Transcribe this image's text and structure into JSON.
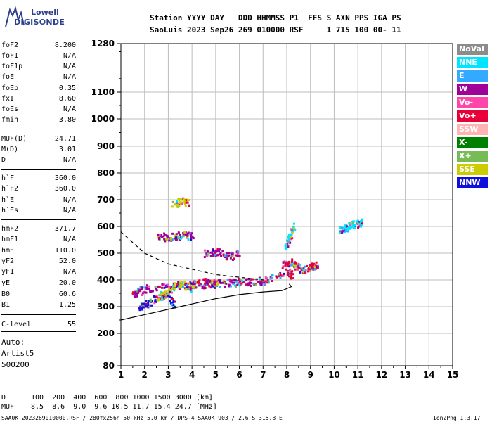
{
  "logo": {
    "line1": "Lowell",
    "line2": "DIGISONDE"
  },
  "header": {
    "line1": "Station YYYY DAY   DDD HHMMSS P1  FFS S AXN PPS IGA PS",
    "line2": "SaoLuis 2023 Sep26 269 010000 RSF     1 715 100 00- 11"
  },
  "params": [
    {
      "name": "foF2",
      "value": "8.200"
    },
    {
      "name": "foF1",
      "value": "N/A"
    },
    {
      "name": "foF1p",
      "value": "N/A"
    },
    {
      "name": "foE",
      "value": "N/A"
    },
    {
      "name": "foEp",
      "value": "0.35"
    },
    {
      "name": "fxI",
      "value": "8.60"
    },
    {
      "name": "foEs",
      "value": "N/A"
    },
    {
      "name": "fmin",
      "value": "3.80"
    },
    {
      "name": "MUF(D)",
      "value": "24.71"
    },
    {
      "name": "M(D)",
      "value": "3.01"
    },
    {
      "name": "D",
      "value": "N/A"
    },
    {
      "name": "h`F",
      "value": "360.0"
    },
    {
      "name": "h`F2",
      "value": "360.0"
    },
    {
      "name": "h`E",
      "value": "N/A"
    },
    {
      "name": "h`Es",
      "value": "N/A"
    },
    {
      "name": "hmF2",
      "value": "371.7"
    },
    {
      "name": "hmF1",
      "value": "N/A"
    },
    {
      "name": "hmE",
      "value": "110.0"
    },
    {
      "name": "yF2",
      "value": "52.0"
    },
    {
      "name": "yF1",
      "value": "N/A"
    },
    {
      "name": "yE",
      "value": "20.0"
    },
    {
      "name": "B0",
      "value": "60.6"
    },
    {
      "name": "B1",
      "value": "1.25"
    },
    {
      "name": "C-level",
      "value": "55"
    }
  ],
  "auto": {
    "line1": "Auto:",
    "line2": "Artist5",
    "line3": "500200"
  },
  "legend": [
    {
      "label": "NoVal",
      "color": "#8c8c8c"
    },
    {
      "label": "NNE",
      "color": "#00e5ff"
    },
    {
      "label": "E",
      "color": "#33aaff"
    },
    {
      "label": "W",
      "color": "#a0009a"
    },
    {
      "label": "Vo-",
      "color": "#ff44aa"
    },
    {
      "label": "Vo+",
      "color": "#e8003a"
    },
    {
      "label": "SSW",
      "color": "#ffb3b3"
    },
    {
      "label": "X-",
      "color": "#008000"
    },
    {
      "label": "X+",
      "color": "#77bb55"
    },
    {
      "label": "SSE",
      "color": "#cccc00"
    },
    {
      "label": "NNW",
      "color": "#1010dd"
    }
  ],
  "footer": {
    "d_label": "D",
    "d_values": "100  200  400  600  800 1000 1500 3000 [km]",
    "muf_label": "MUF",
    "muf_values": "8.5  8.6  9.0  9.6 10.5 11.7 15.4 24.7 [MHz]",
    "status": "SAA0K_2023269010000.RSF / 280fx256h 50 kHz 5.0 km / DPS-4 SAA0K 903 / 2.6 S 315.8 E",
    "version": "Ion2Png 1.3.17"
  },
  "chart_data": {
    "type": "scatter",
    "xlim": [
      1,
      15
    ],
    "ylim": [
      80,
      1280
    ],
    "x_ticks": [
      1,
      2,
      3,
      4,
      5,
      6,
      7,
      8,
      9,
      10,
      11,
      12,
      13,
      14,
      15
    ],
    "y_ticks": [
      80,
      200,
      300,
      400,
      500,
      600,
      700,
      800,
      900,
      1000,
      1100,
      1280
    ],
    "grid": true,
    "legend_position": "right",
    "trace_segments": [
      {
        "series": "Vo+",
        "f": [
          3.8,
          4.5,
          5.0,
          6.0,
          7.0,
          8.0,
          8.2
        ],
        "h": [
          380,
          395,
          390,
          395,
          400,
          430,
          420
        ]
      },
      {
        "series": "W",
        "f": [
          1.5,
          2.0,
          3.0,
          4.0,
          5.0,
          6.0,
          7.0
        ],
        "h": [
          350,
          370,
          380,
          385,
          388,
          392,
          400
        ]
      },
      {
        "series": "NNW",
        "f": [
          1.8,
          2.2,
          2.8,
          3.2
        ],
        "h": [
          300,
          320,
          350,
          310
        ]
      },
      {
        "series": "SSE",
        "f": [
          2.5,
          3.0,
          3.5,
          4.0
        ],
        "h": [
          330,
          360,
          390,
          370
        ]
      },
      {
        "series": "Vo+",
        "f": [
          7.8,
          8.2,
          8.6,
          9.0,
          9.3
        ],
        "h": [
          460,
          470,
          440,
          450,
          460
        ]
      },
      {
        "series": "NNE",
        "f": [
          7.9,
          8.1,
          8.3
        ],
        "h": [
          520,
          560,
          610
        ]
      },
      {
        "series": "NNE",
        "f": [
          10.2,
          10.5,
          10.8,
          11.2
        ],
        "h": [
          590,
          600,
          610,
          620
        ]
      },
      {
        "series": "W",
        "f": [
          2.5,
          3.0,
          3.5,
          4.0
        ],
        "h": [
          570,
          560,
          570,
          565
        ]
      },
      {
        "series": "W",
        "f": [
          4.5,
          5.0,
          5.5,
          6.0
        ],
        "h": [
          500,
          510,
          490,
          500
        ]
      },
      {
        "series": "SSE",
        "f": [
          3.2,
          3.5,
          3.8
        ],
        "h": [
          680,
          700,
          690
        ]
      }
    ],
    "profile_solid": {
      "f": [
        1.0,
        2.0,
        3.0,
        4.0,
        5.0,
        6.0,
        7.0,
        7.8,
        8.2,
        8.1
      ],
      "h": [
        250,
        270,
        290,
        310,
        330,
        345,
        355,
        360,
        375,
        385
      ]
    },
    "profile_dashed": {
      "f": [
        1.0,
        2.0,
        3.0,
        4.0,
        5.0,
        6.0,
        7.0
      ],
      "h": [
        580,
        500,
        460,
        440,
        420,
        410,
        400
      ]
    }
  }
}
